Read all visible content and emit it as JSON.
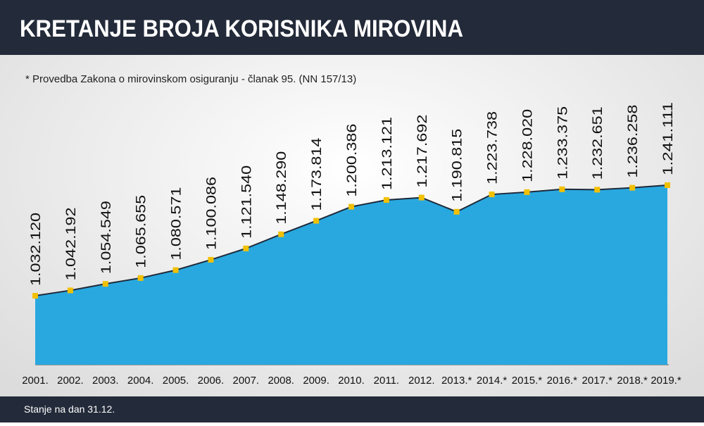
{
  "chart_data": {
    "type": "area",
    "title": "KRETANJE BROJA KORISNIKA MIROVINA",
    "subtitle": "* Provedba Zakona o mirovinskom osiguranju - članak 95. (NN 157/13)",
    "footnote": "Stanje na dan 31.12.",
    "categories": [
      "2001.",
      "2002.",
      "2003.",
      "2004.",
      "2005.",
      "2006.",
      "2007.",
      "2008.",
      "2009.",
      "2010.",
      "2011.",
      "2012.",
      "2013.*",
      "2014.*",
      "2015.*",
      "2016.*",
      "2017.*",
      "2018.*",
      "2019.*"
    ],
    "values": [
      1032120,
      1042192,
      1054549,
      1065655,
      1080571,
      1100086,
      1121540,
      1148290,
      1173814,
      1200386,
      1213121,
      1217692,
      1190815,
      1223738,
      1228020,
      1233375,
      1232651,
      1236258,
      1241111
    ],
    "value_labels": [
      "1.032.120",
      "1.042.192",
      "1.054.549",
      "1.065.655",
      "1.080.571",
      "1.100.086",
      "1.121.540",
      "1.148.290",
      "1.173.814",
      "1.200.386",
      "1.213.121",
      "1.217.692",
      "1.190.815",
      "1.223.738",
      "1.228.020",
      "1.233.375",
      "1.232.651",
      "1.236.258",
      "1.241.111"
    ],
    "color": "#29a8e0",
    "line_color": "#1e2a3a",
    "marker_color": "#f2c000"
  }
}
